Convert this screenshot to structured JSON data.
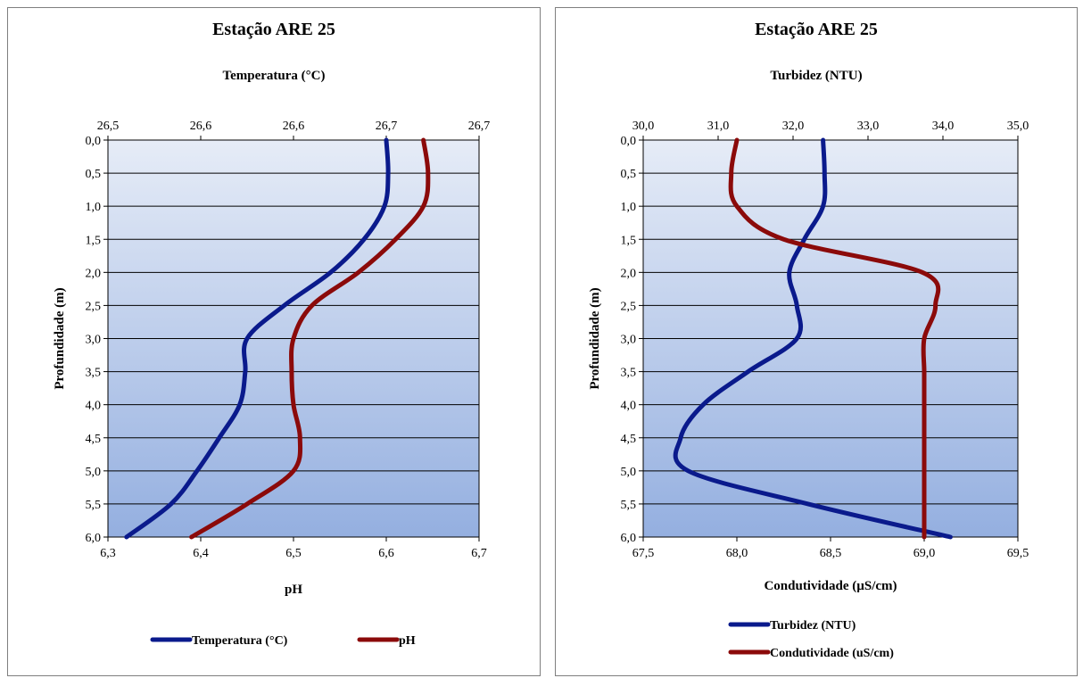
{
  "colors": {
    "temperature": "#0a1a8c",
    "ph": "#8b0a0a",
    "turbidity": "#0a1a8c",
    "conductivity": "#8b0a0a",
    "plot_top": "#e6ecf7",
    "plot_bottom": "#94afe0"
  },
  "chart_data": [
    {
      "type": "line",
      "title": "Estação ARE 25",
      "subtitle": "Temperatura  (°C)",
      "ylabel": "Profundidade  (m)",
      "xlabel_bottom": "pH",
      "ylim": [
        0,
        6
      ],
      "y_inverted": true,
      "y_ticks": [
        "0,0",
        "0,5",
        "1,0",
        "1,5",
        "2,0",
        "2,5",
        "3,0",
        "3,5",
        "4,0",
        "4,5",
        "5,0",
        "5,5",
        "6,0"
      ],
      "x_top_ticks": [
        "26,5",
        "26,6",
        "26,6",
        "26,7",
        "26,7"
      ],
      "x_top_range": [
        26.5,
        26.7
      ],
      "x_bottom_ticks": [
        "6,3",
        "6,4",
        "6,5",
        "6,6",
        "6,7"
      ],
      "x_bottom_range": [
        6.3,
        6.7
      ],
      "grid": true,
      "legend_position": "bottom",
      "series": [
        {
          "name": "Temperatura (°C)",
          "axis": "top",
          "depth": [
            0,
            0.5,
            1.0,
            1.5,
            2.0,
            2.5,
            3.0,
            3.5,
            4.0,
            4.5,
            5.0,
            5.5,
            6.0
          ],
          "values": [
            26.65,
            26.651,
            26.649,
            26.638,
            26.62,
            26.595,
            26.575,
            26.574,
            26.571,
            26.56,
            26.548,
            26.534,
            26.51
          ]
        },
        {
          "name": "pH",
          "axis": "bottom",
          "depth": [
            0,
            0.5,
            1.0,
            1.5,
            2.0,
            2.5,
            3.0,
            3.5,
            4.0,
            4.5,
            5.0,
            5.5,
            6.0
          ],
          "values": [
            6.64,
            6.645,
            6.64,
            6.61,
            6.57,
            6.52,
            6.5,
            6.498,
            6.5,
            6.507,
            6.5,
            6.45,
            6.39
          ]
        }
      ]
    },
    {
      "type": "line",
      "title": "Estação ARE 25",
      "subtitle": "Turbidez  (NTU)",
      "ylabel": "Profundidade  (m)",
      "xlabel_bottom": "Condutividade  (µS/cm)",
      "ylim": [
        0,
        6
      ],
      "y_inverted": true,
      "y_ticks": [
        "0,0",
        "0,5",
        "1,0",
        "1,5",
        "2,0",
        "2,5",
        "3,0",
        "3,5",
        "4,0",
        "4,5",
        "5,0",
        "5,5",
        "6,0"
      ],
      "x_top_ticks": [
        "30,0",
        "31,0",
        "32,0",
        "33,0",
        "34,0",
        "35,0"
      ],
      "x_top_range": [
        30,
        35
      ],
      "x_bottom_ticks": [
        "67,5",
        "68,0",
        "68,5",
        "69,0",
        "69,5"
      ],
      "x_bottom_range": [
        67.5,
        69.5
      ],
      "grid": true,
      "legend_position": "bottom",
      "series": [
        {
          "name": "Turbidez (NTU)",
          "axis": "top",
          "depth": [
            0,
            0.5,
            1.0,
            1.5,
            2.0,
            2.5,
            3.0,
            3.5,
            4.0,
            4.5,
            5.0,
            5.5,
            6.0
          ],
          "values": [
            32.4,
            32.42,
            32.4,
            32.15,
            31.95,
            32.05,
            32.05,
            31.4,
            30.8,
            30.5,
            30.6,
            32.2,
            34.1
          ]
        },
        {
          "name": "Condutividade (uS/cm)",
          "axis": "bottom",
          "depth": [
            0,
            0.5,
            1.0,
            1.5,
            2.0,
            2.5,
            3.0,
            3.5,
            4.0,
            4.5,
            5.0,
            5.5,
            6.0
          ],
          "values": [
            68.0,
            67.97,
            68.0,
            68.25,
            68.99,
            69.06,
            69.0,
            69.0,
            69.0,
            69.0,
            69.0,
            69.0,
            69.0
          ]
        }
      ]
    }
  ]
}
